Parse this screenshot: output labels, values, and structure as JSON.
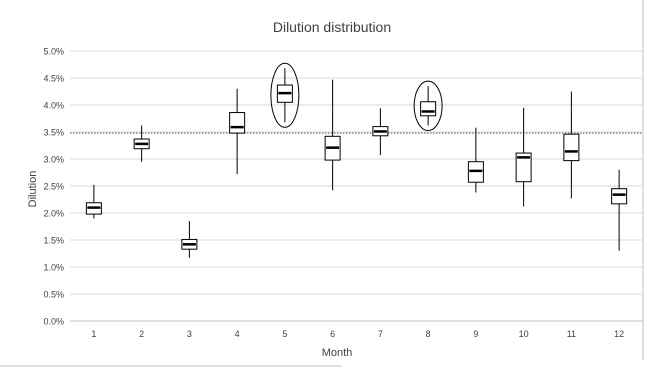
{
  "chart_data": {
    "type": "box",
    "title": "Dilution distribution",
    "xlabel": "Month",
    "ylabel": "Dilution",
    "categories": [
      "1",
      "2",
      "3",
      "4",
      "5",
      "6",
      "7",
      "8",
      "9",
      "10",
      "11",
      "12"
    ],
    "ylim": [
      0,
      5.0
    ],
    "yticks": [
      "0.0%",
      "0.5%",
      "1.0%",
      "1.5%",
      "2.0%",
      "2.5%",
      "3.0%",
      "3.5%",
      "4.0%",
      "4.5%",
      "5.0%"
    ],
    "grid": true,
    "reference_line": 3.48,
    "highlighted_categories": [
      "5",
      "8"
    ],
    "boxes": [
      {
        "category": "1",
        "min": 1.9,
        "q1": 1.98,
        "median": 2.1,
        "q3": 2.19,
        "max": 2.52
      },
      {
        "category": "2",
        "min": 2.95,
        "q1": 3.19,
        "median": 3.28,
        "q3": 3.37,
        "max": 3.62
      },
      {
        "category": "3",
        "min": 1.17,
        "q1": 1.33,
        "median": 1.42,
        "q3": 1.51,
        "max": 1.85
      },
      {
        "category": "4",
        "min": 2.72,
        "q1": 3.48,
        "median": 3.59,
        "q3": 3.86,
        "max": 4.3
      },
      {
        "category": "5",
        "min": 3.68,
        "q1": 4.05,
        "median": 4.22,
        "q3": 4.37,
        "max": 4.68
      },
      {
        "category": "6",
        "min": 2.42,
        "q1": 2.98,
        "median": 3.21,
        "q3": 3.42,
        "max": 4.47
      },
      {
        "category": "7",
        "min": 3.07,
        "q1": 3.43,
        "median": 3.51,
        "q3": 3.6,
        "max": 3.94
      },
      {
        "category": "8",
        "min": 3.62,
        "q1": 3.8,
        "median": 3.88,
        "q3": 4.06,
        "max": 4.35
      },
      {
        "category": "9",
        "min": 2.38,
        "q1": 2.57,
        "median": 2.78,
        "q3": 2.95,
        "max": 3.58
      },
      {
        "category": "10",
        "min": 2.12,
        "q1": 2.58,
        "median": 3.03,
        "q3": 3.11,
        "max": 3.95
      },
      {
        "category": "11",
        "min": 2.27,
        "q1": 2.97,
        "median": 3.14,
        "q3": 3.46,
        "max": 4.25
      },
      {
        "category": "12",
        "min": 1.3,
        "q1": 2.17,
        "median": 2.34,
        "q3": 2.45,
        "max": 2.8
      }
    ]
  }
}
